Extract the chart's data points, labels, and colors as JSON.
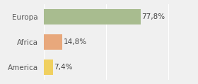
{
  "categories": [
    "Europa",
    "Africa",
    "America"
  ],
  "values": [
    77.8,
    14.8,
    7.4
  ],
  "labels": [
    "77,8%",
    "14,8%",
    "7,4%"
  ],
  "bar_colors": [
    "#a8bc8f",
    "#e8a87c",
    "#f0d060"
  ],
  "background_color": "#f0f0f0",
  "xlim": [
    0,
    105
  ],
  "bar_height": 0.62,
  "label_fontsize": 7.5,
  "tick_fontsize": 7.5
}
